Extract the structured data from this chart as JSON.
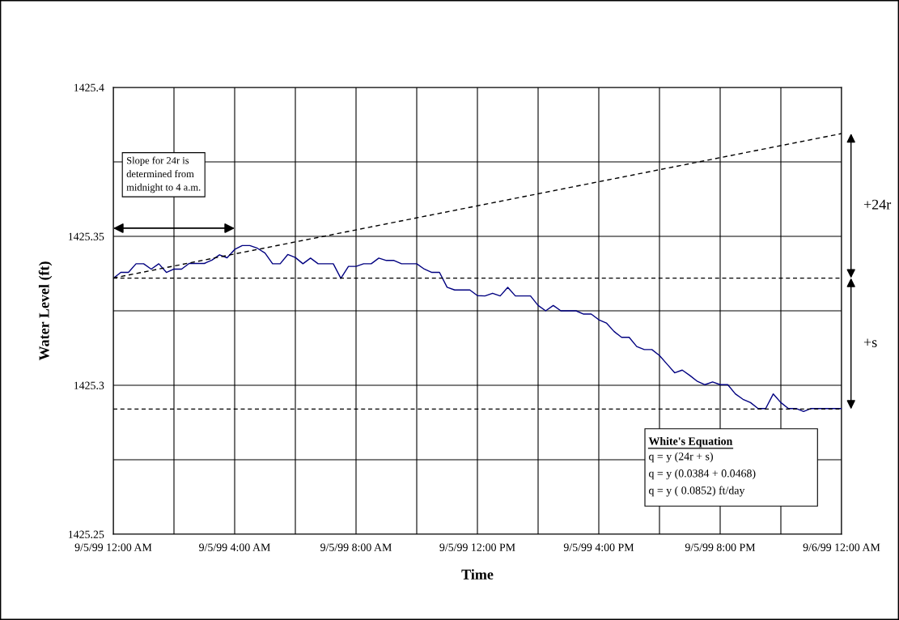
{
  "chart_data": {
    "type": "line",
    "xlabel": "Time",
    "ylabel": "Water Level (ft)",
    "xlim": [
      "1999-09-05T00:00",
      "1999-09-06T00:00"
    ],
    "ylim": [
      1425.25,
      1425.4
    ],
    "xticks": [
      {
        "value": "1999-09-05T00:00",
        "label": "9/5/99 12:00 AM"
      },
      {
        "value": "1999-09-05T02:00",
        "label": null
      },
      {
        "value": "1999-09-05T04:00",
        "label": "9/5/99 4:00 AM"
      },
      {
        "value": "1999-09-05T06:00",
        "label": null
      },
      {
        "value": "1999-09-05T08:00",
        "label": "9/5/99 8:00 AM"
      },
      {
        "value": "1999-09-05T10:00",
        "label": null
      },
      {
        "value": "1999-09-05T12:00",
        "label": "9/5/99 12:00 PM"
      },
      {
        "value": "1999-09-05T14:00",
        "label": null
      },
      {
        "value": "1999-09-05T16:00",
        "label": "9/5/99 4:00 PM"
      },
      {
        "value": "1999-09-05T18:00",
        "label": null
      },
      {
        "value": "1999-09-05T20:00",
        "label": "9/5/99 8:00 PM"
      },
      {
        "value": "1999-09-05T22:00",
        "label": null
      },
      {
        "value": "1999-09-06T00:00",
        "label": "9/6/99 12:00 AM"
      }
    ],
    "yticks": [
      1425.25,
      {
        "value": 1425.275,
        "label": null
      },
      1425.3,
      {
        "value": 1425.325,
        "label": null
      },
      1425.35,
      {
        "value": 1425.375,
        "label": null
      },
      1425.4
    ],
    "grid": true,
    "legend": false,
    "marker": "none",
    "series": [
      {
        "color": "#000080",
        "line_style": "solid",
        "x": [
          "1999-09-05T00:00",
          "1999-09-05T00:15",
          "1999-09-05T00:30",
          "1999-09-05T00:45",
          "1999-09-05T01:00",
          "1999-09-05T01:15",
          "1999-09-05T01:30",
          "1999-09-05T01:45",
          "1999-09-05T02:00",
          "1999-09-05T02:15",
          "1999-09-05T02:30",
          "1999-09-05T02:45",
          "1999-09-05T03:00",
          "1999-09-05T03:15",
          "1999-09-05T03:30",
          "1999-09-05T03:45",
          "1999-09-05T04:00",
          "1999-09-05T04:15",
          "1999-09-05T04:30",
          "1999-09-05T04:45",
          "1999-09-05T05:00",
          "1999-09-05T05:15",
          "1999-09-05T05:30",
          "1999-09-05T05:45",
          "1999-09-05T06:00",
          "1999-09-05T06:15",
          "1999-09-05T06:30",
          "1999-09-05T06:45",
          "1999-09-05T07:00",
          "1999-09-05T07:15",
          "1999-09-05T07:30",
          "1999-09-05T07:45",
          "1999-09-05T08:00",
          "1999-09-05T08:15",
          "1999-09-05T08:30",
          "1999-09-05T08:45",
          "1999-09-05T09:00",
          "1999-09-05T09:15",
          "1999-09-05T09:30",
          "1999-09-05T09:45",
          "1999-09-05T10:00",
          "1999-09-05T10:15",
          "1999-09-05T10:30",
          "1999-09-05T10:45",
          "1999-09-05T11:00",
          "1999-09-05T11:15",
          "1999-09-05T11:30",
          "1999-09-05T11:45",
          "1999-09-05T12:00",
          "1999-09-05T12:15",
          "1999-09-05T12:30",
          "1999-09-05T12:45",
          "1999-09-05T13:00",
          "1999-09-05T13:15",
          "1999-09-05T13:30",
          "1999-09-05T13:45",
          "1999-09-05T14:00",
          "1999-09-05T14:15",
          "1999-09-05T14:30",
          "1999-09-05T14:45",
          "1999-09-05T15:00",
          "1999-09-05T15:15",
          "1999-09-05T15:30",
          "1999-09-05T15:45",
          "1999-09-05T16:00",
          "1999-09-05T16:15",
          "1999-09-05T16:30",
          "1999-09-05T16:45",
          "1999-09-05T17:00",
          "1999-09-05T17:15",
          "1999-09-05T17:30",
          "1999-09-05T17:45",
          "1999-09-05T18:00",
          "1999-09-05T18:15",
          "1999-09-05T18:30",
          "1999-09-05T18:45",
          "1999-09-05T19:00",
          "1999-09-05T19:15",
          "1999-09-05T19:30",
          "1999-09-05T19:45",
          "1999-09-05T20:00",
          "1999-09-05T20:15",
          "1999-09-05T20:30",
          "1999-09-05T20:45",
          "1999-09-05T21:00",
          "1999-09-05T21:15",
          "1999-09-05T21:30",
          "1999-09-05T21:45",
          "1999-09-05T22:00",
          "1999-09-05T22:15",
          "1999-09-05T22:30",
          "1999-09-05T22:45",
          "1999-09-05T23:00",
          "1999-09-05T23:15",
          "1999-09-05T23:30",
          "1999-09-05T23:45",
          "1999-09-06T00:00"
        ],
        "values": [
          1425.3359,
          1425.3379,
          1425.3379,
          1425.3408,
          1425.3408,
          1425.339,
          1425.3408,
          1425.3379,
          1425.339,
          1425.339,
          1425.3409,
          1425.3409,
          1425.3409,
          1425.342,
          1425.3438,
          1425.3428,
          1425.3456,
          1425.3469,
          1425.3469,
          1425.346,
          1425.3444,
          1425.3408,
          1425.3408,
          1425.3439,
          1425.3429,
          1425.3408,
          1425.3427,
          1425.3408,
          1425.3408,
          1425.3408,
          1425.3359,
          1425.3399,
          1425.3399,
          1425.3408,
          1425.3408,
          1425.3427,
          1425.3419,
          1425.3419,
          1425.3408,
          1425.3408,
          1425.3408,
          1425.339,
          1425.3379,
          1425.3379,
          1425.3329,
          1425.332,
          1425.332,
          1425.332,
          1425.3301,
          1425.33,
          1425.3309,
          1425.33,
          1425.3329,
          1425.33,
          1425.33,
          1425.33,
          1425.3268,
          1425.325,
          1425.3268,
          1425.325,
          1425.325,
          1425.325,
          1425.3239,
          1425.3239,
          1425.322,
          1425.3209,
          1425.3181,
          1425.3161,
          1425.3161,
          1425.313,
          1425.312,
          1425.312,
          1425.31,
          1425.3071,
          1425.3042,
          1425.3051,
          1425.3033,
          1425.3013,
          1425.3002,
          1425.3011,
          1425.3002,
          1425.3002,
          1425.2971,
          1425.2953,
          1425.2942,
          1425.2922,
          1425.2922,
          1425.2971,
          1425.2942,
          1425.2922,
          1425.2922,
          1425.2912,
          1425.2922,
          1425.2922,
          1425.2922,
          1425.2922,
          1425.2922
        ]
      },
      {
        "color": "#000000",
        "line_style": "dashed",
        "x": [
          "1999-09-05T00:00",
          "1999-09-06T00:00"
        ],
        "values": [
          1425.336,
          1425.3845
        ]
      }
    ],
    "ref_lines": [
      {
        "axis": "y",
        "value": 1425.336,
        "color": "#000000",
        "line_style": "dashed"
      },
      {
        "axis": "y",
        "value": 1425.292,
        "color": "#000000",
        "line_style": "dashed"
      }
    ],
    "annotations": [
      "Slope for 24r is\ndetermined from\nmidnight to 4 a.m.",
      "+24r",
      "+s",
      "White's Equation\nq = y (24r + s)\nq = y (0.0384 + 0.0468)\nq = y ( 0.0852) ft/day"
    ]
  }
}
